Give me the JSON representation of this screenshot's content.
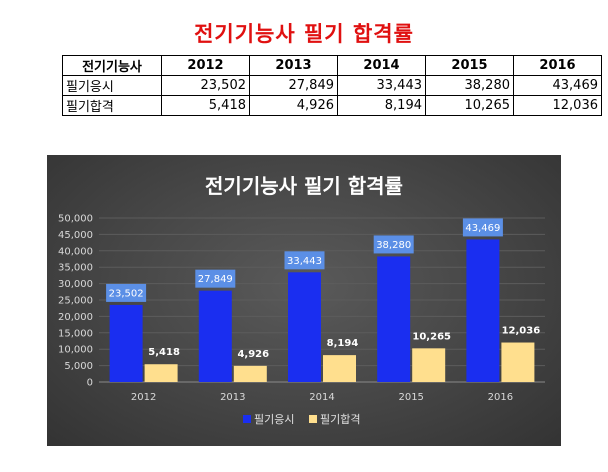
{
  "page": {
    "title": "전기기능사 필기 합격률"
  },
  "table": {
    "header_label": "전기기능사",
    "years": [
      "2012",
      "2013",
      "2014",
      "2015",
      "2016"
    ],
    "rows": [
      {
        "label": "필기응시",
        "values": [
          "23,502",
          "27,849",
          "33,443",
          "38,280",
          "43,469"
        ]
      },
      {
        "label": "필기합격",
        "values": [
          "5,418",
          "4,926",
          "8,194",
          "10,265",
          "12,036"
        ]
      }
    ]
  },
  "colors": {
    "title_red": "#e01010",
    "series_applicants": "#1a2ef0",
    "series_passers": "#ffdf8e",
    "label_box_blue": "#5b8fe6"
  },
  "chart_data": {
    "type": "bar",
    "title": "전기기능사 필기 합격률",
    "categories": [
      "2012",
      "2013",
      "2014",
      "2015",
      "2016"
    ],
    "series": [
      {
        "name": "필기응시",
        "values": [
          23502,
          27849,
          33443,
          38280,
          43469
        ]
      },
      {
        "name": "필기합격",
        "values": [
          5418,
          4926,
          8194,
          10265,
          12036
        ]
      }
    ],
    "data_labels": [
      [
        "23,502",
        "27,849",
        "33,443",
        "38,280",
        "43,469"
      ],
      [
        "5,418",
        "4,926",
        "8,194",
        "10,265",
        "12,036"
      ]
    ],
    "y_ticks": [
      "0",
      "5,000",
      "10,000",
      "15,000",
      "20,000",
      "25,000",
      "30,000",
      "35,000",
      "40,000",
      "45,000",
      "50,000"
    ],
    "ylim": [
      0,
      50000
    ],
    "grid": true,
    "legend_position": "bottom"
  }
}
